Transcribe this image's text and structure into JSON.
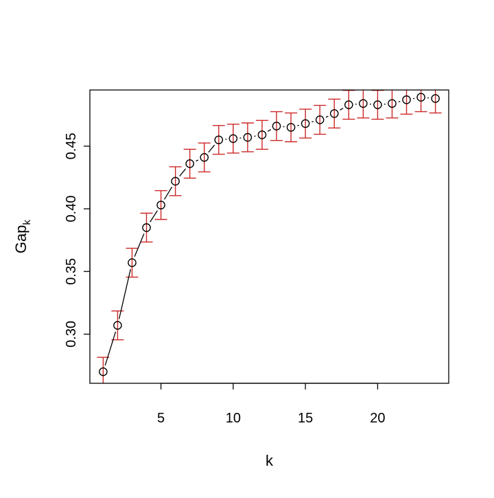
{
  "chart_data": {
    "type": "scatter",
    "title": "",
    "xlabel": "k",
    "ylabel": "Gap",
    "ylabel_subscript": "k",
    "xlim": [
      0.08,
      24.92
    ],
    "ylim": [
      0.2608,
      0.4948
    ],
    "x_ticks": [
      5,
      10,
      15,
      20
    ],
    "x_tick_labels": [
      "5",
      "10",
      "15",
      "20"
    ],
    "y_ticks": [
      0.3,
      0.35,
      0.4,
      0.45
    ],
    "y_tick_labels": [
      "0.30",
      "0.35",
      "0.40",
      "0.45"
    ],
    "grid": false,
    "legend": "none",
    "error_bar_half_width": 0.0115,
    "colors": {
      "points": "#000000",
      "line": "#000000",
      "error_bars": "#cd2626"
    },
    "x": [
      1,
      2,
      3,
      4,
      5,
      6,
      7,
      8,
      9,
      10,
      11,
      12,
      13,
      14,
      15,
      16,
      17,
      18,
      19,
      20,
      21,
      22,
      23,
      24
    ],
    "series": [
      {
        "values": [
          0.27,
          0.307,
          0.357,
          0.385,
          0.403,
          0.422,
          0.436,
          0.441,
          0.455,
          0.456,
          0.457,
          0.459,
          0.466,
          0.465,
          0.468,
          0.471,
          0.476,
          0.483,
          0.484,
          0.483,
          0.484,
          0.487,
          0.489,
          0.488
        ]
      }
    ]
  }
}
